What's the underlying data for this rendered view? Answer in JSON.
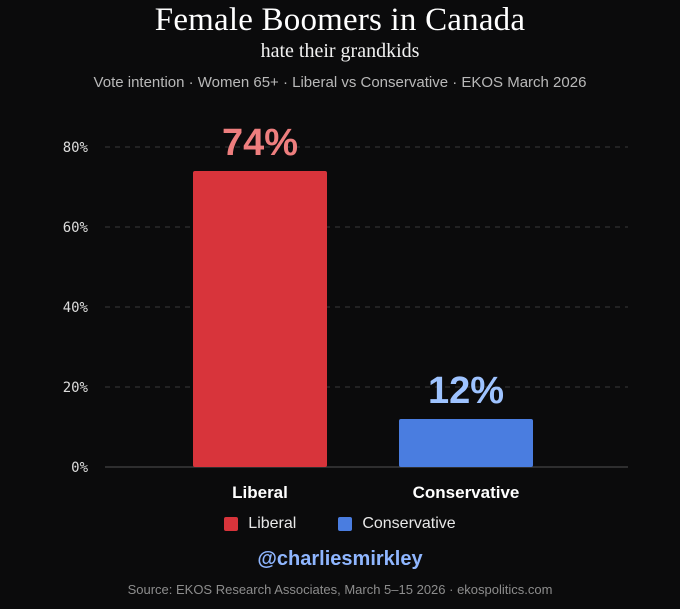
{
  "header": {
    "title": "Female Boomers in Canada",
    "subtitle": "hate their grandkids",
    "caption": "Vote intention · Women 65+ · Liberal vs Conservative · EKOS March 2026"
  },
  "chart_data": {
    "type": "bar",
    "categories": [
      "Liberal",
      "Conservative"
    ],
    "values": [
      74,
      12
    ],
    "value_labels": [
      "74%",
      "12%"
    ],
    "colors": [
      "#d8343b",
      "#4a7de0"
    ],
    "value_label_colors": [
      "#ee7e7e",
      "#9ec3ff"
    ],
    "ylim": [
      0,
      80
    ],
    "yticks": [
      0,
      20,
      40,
      60,
      80
    ],
    "ytick_labels": [
      "0%",
      "20%",
      "40%",
      "60%",
      "80%"
    ],
    "xlabel": "",
    "ylabel": "",
    "grid": true,
    "legend_placement": "bottom-center"
  },
  "legend": {
    "items": [
      {
        "label": "Liberal",
        "color": "#d8343b"
      },
      {
        "label": "Conservative",
        "color": "#4a7de0"
      }
    ]
  },
  "footer": {
    "handle": "@charliesmirkley",
    "source": "Source: EKOS Research Associates, March 5–15 2026 · ekospolitics.com"
  }
}
